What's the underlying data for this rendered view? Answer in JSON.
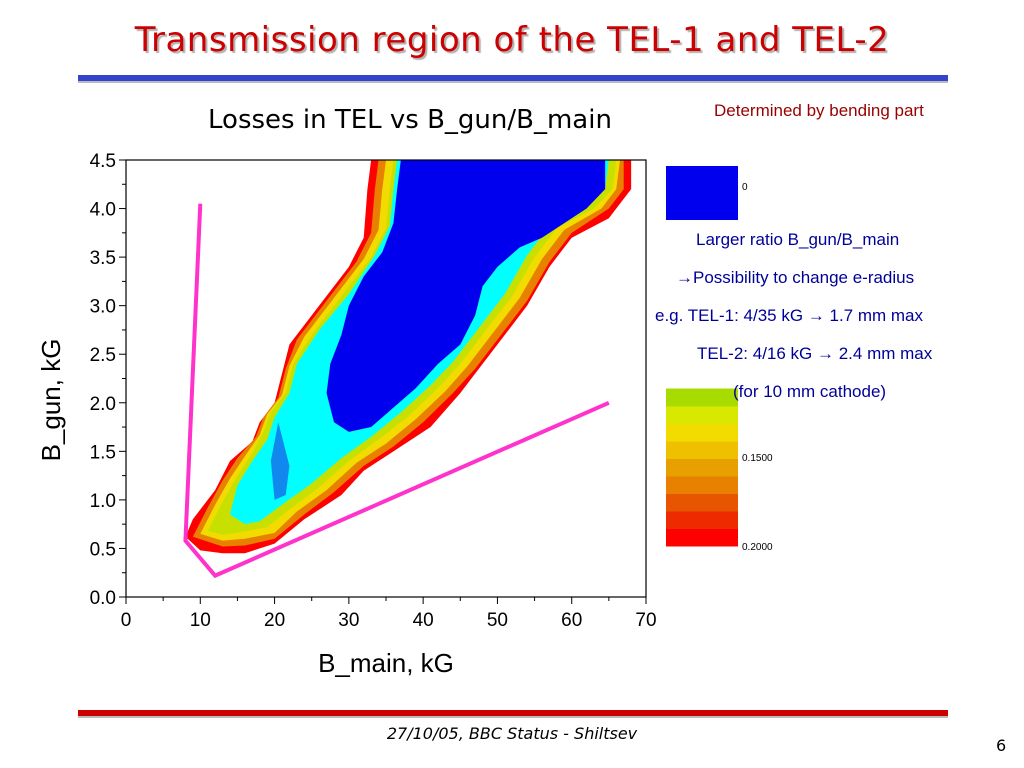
{
  "slide": {
    "title": "Transmission region of the TEL-1 and TEL-2",
    "footer": "27/10/05, BBC Status - Shiltsev",
    "page_number": "6"
  },
  "notes": {
    "determined": "Determined by bending part",
    "line1": "Larger ratio B_gun/B_main",
    "line2": "→Possibility to change e-radius",
    "line3": "e.g. TEL-1: 4/35 kG → 1.7 mm max",
    "line4": "TEL-2: 4/16 kG → 2.4 mm max",
    "line5": "(for 10 mm cathode)"
  },
  "chart_data": {
    "type": "contour",
    "title": "Losses in TEL vs B_gun/B_main",
    "xlabel": "B_main, kG",
    "ylabel": "B_gun, kG",
    "xlim": [
      0,
      70
    ],
    "ylim": [
      0,
      4.5
    ],
    "x_ticks": [
      "0",
      "10",
      "20",
      "30",
      "40",
      "50",
      "60",
      "70"
    ],
    "y_ticks": [
      "0.0",
      "0.5",
      "1.0",
      "1.5",
      "2.0",
      "2.5",
      "3.0",
      "3.5",
      "4.0",
      "4.5"
    ],
    "colorbar": {
      "labels": [
        "0",
        "0.1500",
        "0.2000"
      ],
      "levels_colors_bottom_to_top": [
        "#ff0000",
        "#ee2a00",
        "#e85500",
        "#e88000",
        "#e8a000",
        "#eec000",
        "#f2dc00",
        "#d8e800",
        "#a8dc00"
      ],
      "top_color": "#0000ee"
    },
    "contour_bands": [
      {
        "color": "#ff0000",
        "points": [
          [
            8,
            0.62
          ],
          [
            9,
            0.8
          ],
          [
            12,
            1.1
          ],
          [
            14,
            1.4
          ],
          [
            17,
            1.6
          ],
          [
            18,
            1.8
          ],
          [
            20,
            2.0
          ],
          [
            21,
            2.3
          ],
          [
            22,
            2.6
          ],
          [
            26,
            3.0
          ],
          [
            30,
            3.4
          ],
          [
            32,
            3.7
          ],
          [
            32.5,
            4.2
          ],
          [
            33,
            4.5
          ],
          [
            68,
            4.5
          ],
          [
            68,
            4.2
          ],
          [
            66,
            4.0
          ],
          [
            65,
            3.9
          ],
          [
            60,
            3.7
          ],
          [
            57,
            3.4
          ],
          [
            54,
            3.0
          ],
          [
            50,
            2.6
          ],
          [
            47,
            2.3
          ],
          [
            45,
            2.1
          ],
          [
            41,
            1.75
          ],
          [
            36,
            1.5
          ],
          [
            32,
            1.3
          ],
          [
            29,
            1.05
          ],
          [
            24,
            0.8
          ],
          [
            20,
            0.55
          ],
          [
            16,
            0.45
          ],
          [
            13,
            0.45
          ],
          [
            10,
            0.48
          ]
        ]
      },
      {
        "color": "#e88000",
        "points": [
          [
            9,
            0.62
          ],
          [
            11,
            0.92
          ],
          [
            13,
            1.2
          ],
          [
            15,
            1.43
          ],
          [
            17.5,
            1.65
          ],
          [
            18.5,
            1.85
          ],
          [
            20.5,
            2.05
          ],
          [
            21.5,
            2.35
          ],
          [
            23,
            2.65
          ],
          [
            27,
            3.05
          ],
          [
            31,
            3.45
          ],
          [
            33,
            3.75
          ],
          [
            33.5,
            4.2
          ],
          [
            34,
            4.5
          ],
          [
            67,
            4.5
          ],
          [
            67,
            4.2
          ],
          [
            65,
            4.0
          ],
          [
            60,
            3.75
          ],
          [
            57,
            3.45
          ],
          [
            54,
            3.05
          ],
          [
            50,
            2.65
          ],
          [
            47,
            2.35
          ],
          [
            44,
            2.1
          ],
          [
            40,
            1.8
          ],
          [
            36,
            1.55
          ],
          [
            32,
            1.35
          ],
          [
            28,
            1.08
          ],
          [
            24,
            0.85
          ],
          [
            20,
            0.6
          ],
          [
            16,
            0.53
          ],
          [
            13,
            0.52
          ]
        ]
      },
      {
        "color": "#f2dc00",
        "points": [
          [
            10,
            0.65
          ],
          [
            12,
            0.95
          ],
          [
            14,
            1.22
          ],
          [
            16,
            1.45
          ],
          [
            18,
            1.67
          ],
          [
            19,
            1.88
          ],
          [
            21,
            2.08
          ],
          [
            22,
            2.38
          ],
          [
            24,
            2.68
          ],
          [
            28,
            3.08
          ],
          [
            32,
            3.48
          ],
          [
            34,
            3.78
          ],
          [
            34.5,
            4.2
          ],
          [
            35,
            4.5
          ],
          [
            66.5,
            4.5
          ],
          [
            66,
            4.2
          ],
          [
            64,
            4.0
          ],
          [
            59,
            3.78
          ],
          [
            56,
            3.48
          ],
          [
            53,
            3.08
          ],
          [
            49,
            2.68
          ],
          [
            46,
            2.38
          ],
          [
            43,
            2.12
          ],
          [
            39,
            1.83
          ],
          [
            35,
            1.58
          ],
          [
            31,
            1.38
          ],
          [
            27,
            1.1
          ],
          [
            23,
            0.88
          ],
          [
            20,
            0.66
          ],
          [
            16,
            0.6
          ],
          [
            13,
            0.58
          ]
        ]
      },
      {
        "color": "#c8e000",
        "points": [
          [
            11,
            0.68
          ],
          [
            13,
            0.98
          ],
          [
            15,
            1.25
          ],
          [
            17,
            1.48
          ],
          [
            18.5,
            1.7
          ],
          [
            19.5,
            1.9
          ],
          [
            21.5,
            2.1
          ],
          [
            22.5,
            2.4
          ],
          [
            25,
            2.7
          ],
          [
            29,
            3.1
          ],
          [
            33,
            3.5
          ],
          [
            35,
            3.8
          ],
          [
            35.5,
            4.2
          ],
          [
            36,
            4.5
          ],
          [
            66,
            4.5
          ],
          [
            65.5,
            4.2
          ],
          [
            63,
            4.0
          ],
          [
            58,
            3.8
          ],
          [
            55,
            3.5
          ],
          [
            52,
            3.1
          ],
          [
            48,
            2.7
          ],
          [
            45,
            2.4
          ],
          [
            42,
            2.15
          ],
          [
            38,
            1.86
          ],
          [
            34,
            1.62
          ],
          [
            30,
            1.4
          ],
          [
            26,
            1.13
          ],
          [
            22,
            0.9
          ],
          [
            19,
            0.72
          ],
          [
            15,
            0.66
          ],
          [
            13,
            0.64
          ]
        ]
      },
      {
        "color": "#00ffff",
        "points": [
          [
            14,
            0.85
          ],
          [
            15,
            1.15
          ],
          [
            17,
            1.4
          ],
          [
            19,
            1.62
          ],
          [
            20,
            1.85
          ],
          [
            22,
            2.1
          ],
          [
            23,
            2.4
          ],
          [
            26,
            2.75
          ],
          [
            30,
            3.12
          ],
          [
            33.5,
            3.52
          ],
          [
            35.5,
            3.82
          ],
          [
            36,
            4.2
          ],
          [
            36.5,
            4.5
          ],
          [
            65,
            4.5
          ],
          [
            64.5,
            4.2
          ],
          [
            62,
            4.05
          ],
          [
            57,
            3.82
          ],
          [
            54,
            3.52
          ],
          [
            51,
            3.12
          ],
          [
            47,
            2.72
          ],
          [
            44,
            2.42
          ],
          [
            41,
            2.18
          ],
          [
            37,
            1.9
          ],
          [
            33,
            1.65
          ],
          [
            29,
            1.43
          ],
          [
            25,
            1.17
          ],
          [
            21,
            0.95
          ],
          [
            18,
            0.78
          ],
          [
            16,
            0.75
          ]
        ]
      },
      {
        "color": "#1188ee",
        "points": [
          [
            20,
            1.0
          ],
          [
            19.5,
            1.4
          ],
          [
            20.5,
            1.8
          ],
          [
            22,
            1.35
          ],
          [
            21.5,
            1.05
          ]
        ]
      },
      {
        "color": "#0000ee",
        "points": [
          [
            37,
            4.5
          ],
          [
            36.5,
            4.2
          ],
          [
            36,
            3.85
          ],
          [
            34.5,
            3.55
          ],
          [
            32,
            3.3
          ],
          [
            30,
            3.0
          ],
          [
            29,
            2.7
          ],
          [
            27.5,
            2.4
          ],
          [
            27,
            2.1
          ],
          [
            28,
            1.8
          ],
          [
            30,
            1.7
          ],
          [
            33,
            1.75
          ],
          [
            36,
            1.95
          ],
          [
            39,
            2.15
          ],
          [
            42,
            2.4
          ],
          [
            45,
            2.6
          ],
          [
            47,
            2.9
          ],
          [
            48,
            3.2
          ],
          [
            50,
            3.4
          ],
          [
            53,
            3.6
          ],
          [
            56,
            3.7
          ],
          [
            59,
            3.85
          ],
          [
            62,
            4.0
          ],
          [
            64.5,
            4.2
          ],
          [
            64.5,
            4.5
          ]
        ]
      }
    ],
    "annotation_lines": [
      {
        "color": "#ff33cc",
        "points": [
          [
            10,
            4.05
          ],
          [
            8,
            0.58
          ],
          [
            12,
            0.22
          ],
          [
            65,
            2.0
          ]
        ]
      }
    ]
  }
}
